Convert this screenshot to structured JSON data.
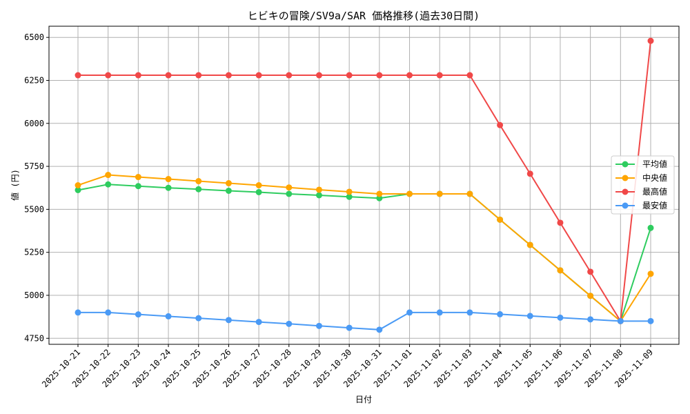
{
  "chart_data": {
    "type": "line",
    "title": "ヒビキの冒険/SV9a/SAR 価格推移(過去30日間)",
    "xlabel": "日付",
    "ylabel": "値 (円)",
    "categories": [
      "2025-10-21",
      "2025-10-22",
      "2025-10-23",
      "2025-10-24",
      "2025-10-25",
      "2025-10-26",
      "2025-10-27",
      "2025-10-28",
      "2025-10-29",
      "2025-10-30",
      "2025-10-31",
      "2025-11-01",
      "2025-11-02",
      "2025-11-03",
      "2025-11-04",
      "2025-11-05",
      "2025-11-06",
      "2025-11-07",
      "2025-11-08",
      "2025-11-09"
    ],
    "yticks": [
      4750,
      5000,
      5250,
      5500,
      5750,
      6000,
      6250,
      6500
    ],
    "ylim": [
      4715,
      6565
    ],
    "grid": true,
    "legend_position": "center-right",
    "series": [
      {
        "name": "平均値",
        "color": "#2ecc5f",
        "values": [
          5612,
          5645,
          5635,
          5625,
          5617,
          5608,
          5600,
          5590,
          5582,
          5573,
          5565,
          5590,
          5590,
          5590,
          5440,
          5293,
          5145,
          4997,
          4850,
          5392
        ]
      },
      {
        "name": "中央値",
        "color": "#ffa500",
        "values": [
          5640,
          5700,
          5688,
          5676,
          5664,
          5652,
          5640,
          5627,
          5614,
          5602,
          5590,
          5590,
          5590,
          5590,
          5440,
          5293,
          5145,
          4997,
          4850,
          5125
        ]
      },
      {
        "name": "最高値",
        "color": "#f04848",
        "values": [
          6280,
          6280,
          6280,
          6280,
          6280,
          6280,
          6280,
          6280,
          6280,
          6280,
          6280,
          6280,
          6280,
          6280,
          5990,
          5707,
          5422,
          5137,
          4850,
          6480
        ]
      },
      {
        "name": "最安値",
        "color": "#4a9af5",
        "values": [
          4900,
          4900,
          4889,
          4878,
          4867,
          4856,
          4845,
          4834,
          4822,
          4811,
          4800,
          4900,
          4900,
          4900,
          4890,
          4880,
          4870,
          4860,
          4850,
          4850
        ]
      }
    ]
  }
}
